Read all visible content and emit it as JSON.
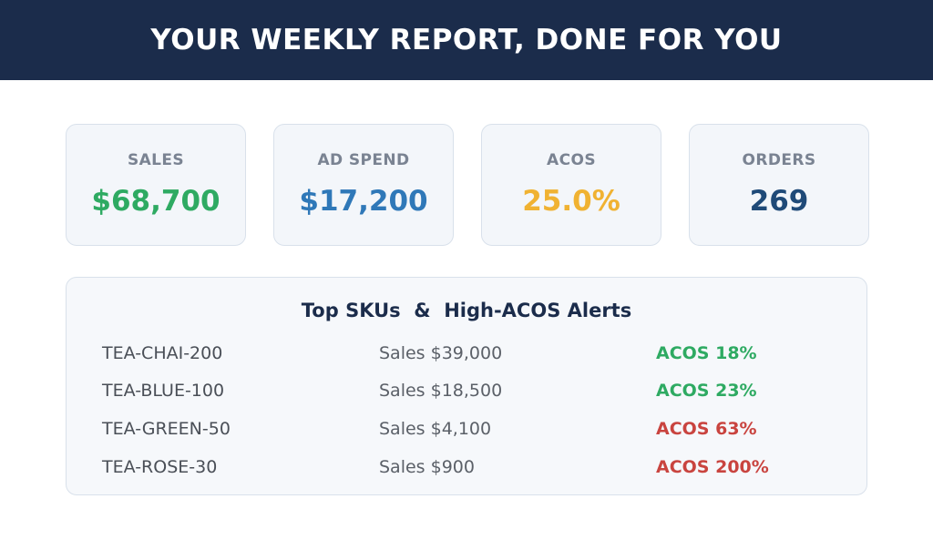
{
  "header": {
    "title": "YOUR WEEKLY REPORT, DONE FOR YOU"
  },
  "colors": {
    "header_bg": "#1b2c4b",
    "green": "#2eaa62",
    "blue": "#2f78b8",
    "amber": "#f0b232",
    "navy": "#1f4a78",
    "red": "#c9443f"
  },
  "metrics": [
    {
      "label": "SALES",
      "value": "$68,700",
      "color": "#2eaa62"
    },
    {
      "label": "AD SPEND",
      "value": "$17,200",
      "color": "#2f78b8"
    },
    {
      "label": "ACOS",
      "value": "25.0%",
      "color": "#f0b232"
    },
    {
      "label": "ORDERS",
      "value": "269",
      "color": "#1f4a78"
    }
  ],
  "alerts": {
    "title": "Top SKUs  &  High-ACOS Alerts",
    "rows": [
      {
        "sku": "TEA-CHAI-200",
        "sales": "Sales $39,000",
        "acos": "ACOS 18%",
        "status": "good",
        "color": "#2eaa62"
      },
      {
        "sku": "TEA-BLUE-100",
        "sales": "Sales $18,500",
        "acos": "ACOS 23%",
        "status": "good",
        "color": "#2eaa62"
      },
      {
        "sku": "TEA-GREEN-50",
        "sales": "Sales $4,100",
        "acos": "ACOS 63%",
        "status": "alert",
        "color": "#c9443f"
      },
      {
        "sku": "TEA-ROSE-30",
        "sales": "Sales $900",
        "acos": "ACOS 200%",
        "status": "alert",
        "color": "#c9443f"
      }
    ]
  }
}
